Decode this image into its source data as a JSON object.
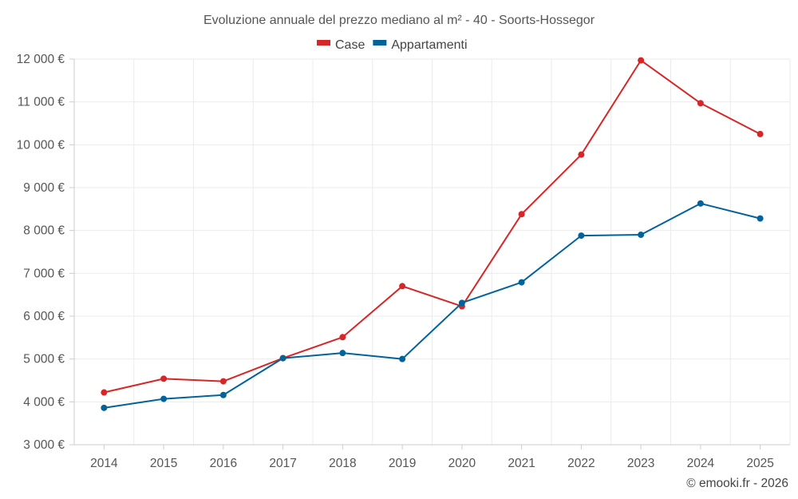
{
  "chart_data": {
    "type": "line",
    "title": "Evoluzione annuale del prezzo mediano al m² - 40 - Soorts-Hossegor",
    "categories": [
      "2014",
      "2015",
      "2016",
      "2017",
      "2018",
      "2019",
      "2020",
      "2021",
      "2022",
      "2023",
      "2024",
      "2025"
    ],
    "series": [
      {
        "name": "Case",
        "color": "#d62728",
        "values": [
          4220,
          4540,
          4480,
          5020,
          5510,
          6700,
          6230,
          8380,
          9770,
          11970,
          10970,
          10250
        ]
      },
      {
        "name": "Appartamenti",
        "color": "#02639b",
        "values": [
          3860,
          4070,
          4160,
          5020,
          5140,
          5000,
          6310,
          6790,
          7880,
          7900,
          8630,
          8280
        ]
      }
    ],
    "ylim": [
      3000,
      12000
    ],
    "yticks": [
      3000,
      4000,
      5000,
      6000,
      7000,
      8000,
      9000,
      10000,
      11000,
      12000
    ],
    "ytick_labels": [
      "3 000 €",
      "4 000 €",
      "5 000 €",
      "6 000 €",
      "7 000 €",
      "8 000 €",
      "9 000 €",
      "10 000 €",
      "11 000 €",
      "12 000 €"
    ],
    "xlabel": "",
    "ylabel": "",
    "grid": true,
    "legend_position": "top-center",
    "credit": "© emooki.fr - 2026"
  }
}
